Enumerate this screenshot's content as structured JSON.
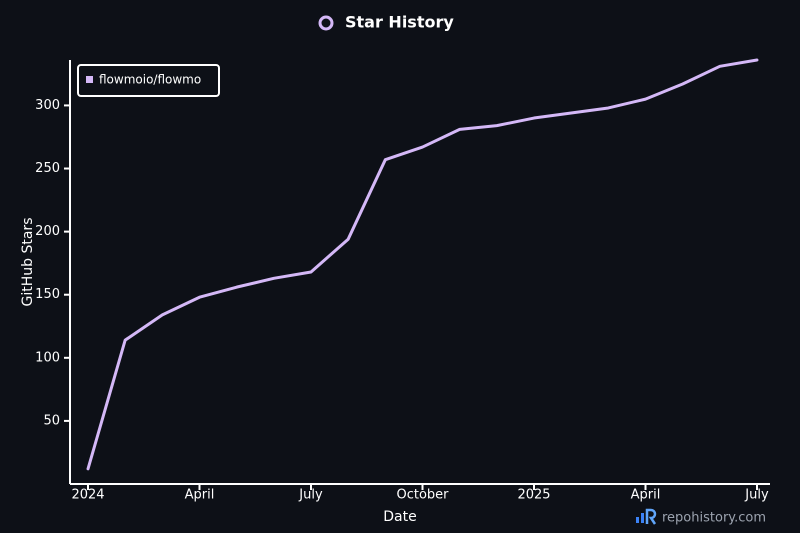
{
  "chart_data": {
    "type": "line",
    "title": "Star History",
    "x_label": "Date",
    "y_label": "GitHub Stars",
    "watermark": "repohistory.com",
    "x": [
      "2024-01",
      "2024-02",
      "2024-03",
      "2024-04",
      "2024-05",
      "2024-06",
      "2024-07",
      "2024-08",
      "2024-09",
      "2024-10",
      "2024-11",
      "2024-12",
      "2025-01",
      "2025-02",
      "2025-03",
      "2025-04",
      "2025-05",
      "2025-06",
      "2025-07"
    ],
    "series": [
      {
        "name": "flowmoio/flowmo",
        "color": "#d4b8f7",
        "values": [
          12,
          114,
          134,
          148,
          156,
          163,
          168,
          194,
          257,
          267,
          281,
          284,
          290,
          294,
          298,
          305,
          317,
          331,
          336
        ]
      }
    ],
    "xlim": [
      "2024-01",
      "2025-07"
    ],
    "xticks": [
      {
        "value": "2024-01",
        "label": "2024"
      },
      {
        "value": "2024-04",
        "label": "April"
      },
      {
        "value": "2024-07",
        "label": "July"
      },
      {
        "value": "2024-10",
        "label": "October"
      },
      {
        "value": "2025-01",
        "label": "2025"
      },
      {
        "value": "2025-04",
        "label": "April"
      },
      {
        "value": "2025-07",
        "label": "July"
      }
    ],
    "ylim": [
      0,
      336
    ],
    "yticks": [
      50,
      100,
      150,
      200,
      250,
      300
    ],
    "legend": "top-left"
  }
}
